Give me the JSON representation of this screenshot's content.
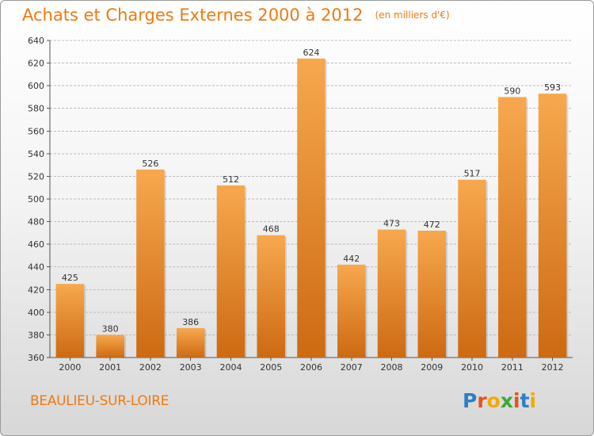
{
  "header": {
    "title": "Achats et Charges Externes 2000 à 2012",
    "unit": "(en milliers d'€)"
  },
  "footer": {
    "commune": "BEAULIEU-SUR-LOIRE",
    "logo_letters": [
      "P",
      "r",
      "o",
      "x",
      "i",
      "t",
      "i"
    ],
    "logo_colors": [
      "#2a7fc9",
      "#e9501c",
      "#f5a800",
      "#3aa935",
      "#e9501c",
      "#2a7fc9",
      "#f5a800"
    ]
  },
  "colors": {
    "accent": "#f07a10",
    "bar_top": "#f7a84e",
    "bar_bottom": "#cd6a12",
    "grid": "#bdbdbd"
  },
  "chart_data": {
    "type": "bar",
    "title": "Achats et Charges Externes 2000 à 2012",
    "subtitle": "(en milliers d'€)",
    "categories": [
      "2000",
      "2001",
      "2002",
      "2003",
      "2004",
      "2005",
      "2006",
      "2007",
      "2008",
      "2009",
      "2010",
      "2011",
      "2012"
    ],
    "values": [
      425,
      380,
      526,
      386,
      512,
      468,
      624,
      442,
      473,
      472,
      517,
      590,
      593
    ],
    "ylim": [
      360,
      640
    ],
    "yticks": [
      360,
      380,
      400,
      420,
      440,
      460,
      480,
      500,
      520,
      540,
      560,
      580,
      600,
      620,
      640
    ],
    "grid": true,
    "xlabel": "",
    "ylabel": ""
  }
}
